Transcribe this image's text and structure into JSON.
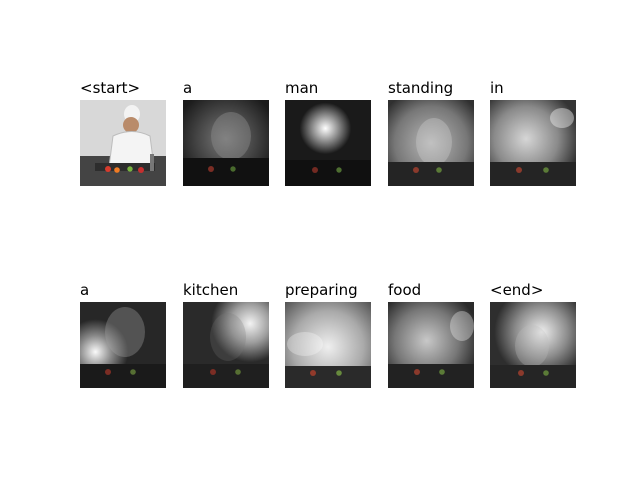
{
  "figure": {
    "rows": [
      [
        "<start>",
        "a",
        "man",
        "standing",
        "in"
      ],
      [
        "a",
        "kitchen",
        "preparing",
        "food",
        "<end>"
      ]
    ]
  }
}
